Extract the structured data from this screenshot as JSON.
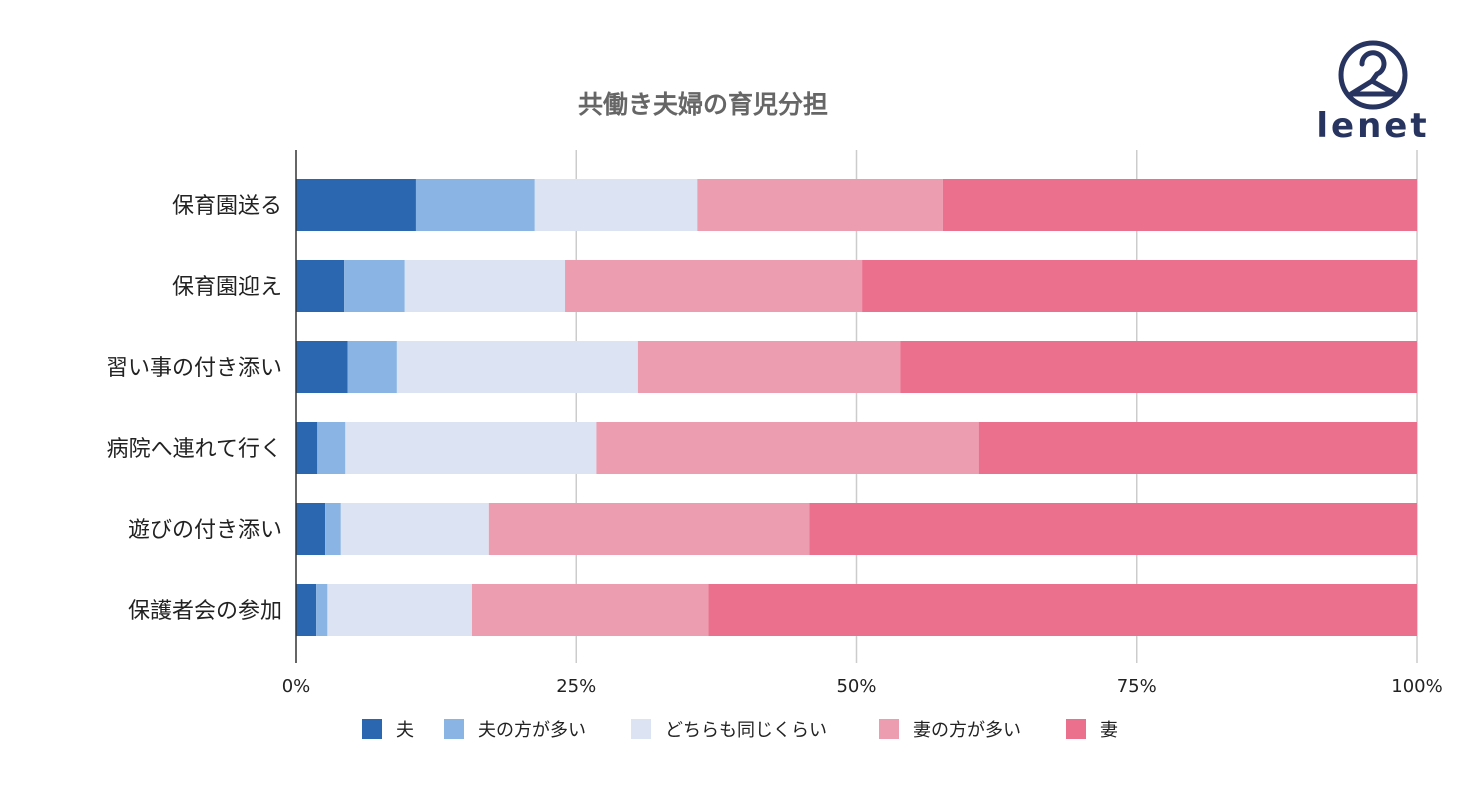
{
  "brand": {
    "name": "lenet",
    "color": "#27345f",
    "icon": "hanger-circle-icon"
  },
  "chart_data": {
    "type": "bar",
    "orientation": "horizontal",
    "stacked": "percent",
    "title": "共働き夫婦の育児分担",
    "xlabel": "",
    "ylabel": "",
    "xlim": [
      0,
      100
    ],
    "x_ticks": [
      "0%",
      "25%",
      "50%",
      "75%",
      "100%"
    ],
    "grid": "vertical",
    "legend_position": "bottom",
    "categories": [
      "保育園送る",
      "保育園迎え",
      "習い事の付き添い",
      "病院へ連れて行く",
      "遊びの付き添い",
      "保護者会の参加"
    ],
    "series": [
      {
        "name": "夫",
        "color": "#2b66b1",
        "values": [
          10.7,
          4.3,
          4.6,
          1.9,
          2.6,
          1.8
        ]
      },
      {
        "name": "夫の方が多い",
        "color": "#8ab4e3",
        "values": [
          10.6,
          5.4,
          4.4,
          2.5,
          1.4,
          1.0
        ]
      },
      {
        "name": "どちらも同じくらい",
        "color": "#dce3f2",
        "values": [
          14.5,
          14.3,
          21.5,
          22.4,
          13.2,
          12.9
        ]
      },
      {
        "name": "妻の方が多い",
        "color": "#ec9db0",
        "values": [
          21.9,
          26.5,
          23.4,
          34.1,
          28.6,
          21.1
        ]
      },
      {
        "name": "妻",
        "color": "#eb708e",
        "values": [
          42.3,
          49.5,
          46.1,
          39.1,
          54.2,
          63.2
        ]
      }
    ]
  }
}
